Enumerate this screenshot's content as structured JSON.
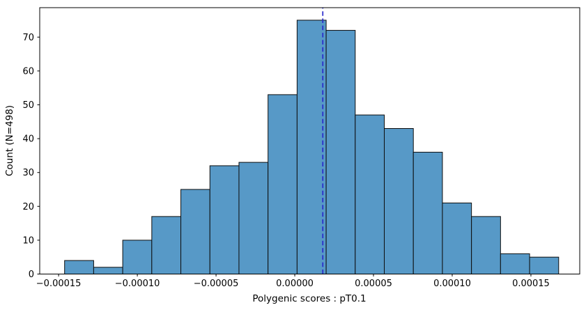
{
  "chart_data": {
    "type": "bar",
    "subtype": "histogram",
    "title": "",
    "xlabel": "Polygenic scores : pT0.1",
    "ylabel": "Count (N=498)",
    "sample_size": 498,
    "bin_edges": [
      -0.0001462,
      -0.00012774,
      -0.00010928,
      -9.082e-05,
      -7.236e-05,
      -5.39e-05,
      -3.544e-05,
      -1.698e-05,
      1.48e-06,
      1.994e-05,
      3.84e-05,
      5.686e-05,
      7.532e-05,
      9.378e-05,
      0.00011224,
      0.0001307,
      0.00014916,
      0.00016762
    ],
    "counts": [
      4,
      2,
      10,
      17,
      25,
      32,
      33,
      53,
      75,
      72,
      47,
      43,
      36,
      21,
      17,
      6,
      5
    ],
    "x_ticks": [
      {
        "value": -0.00015,
        "label": "−0.00015"
      },
      {
        "value": -0.0001,
        "label": "−0.00010"
      },
      {
        "value": -5e-05,
        "label": "−0.00005"
      },
      {
        "value": 0.0,
        "label": "0.00000"
      },
      {
        "value": 5e-05,
        "label": "0.00005"
      },
      {
        "value": 0.0001,
        "label": "0.00010"
      },
      {
        "value": 0.00015,
        "label": "0.00015"
      }
    ],
    "y_ticks": [
      0,
      10,
      20,
      30,
      40,
      50,
      60,
      70
    ],
    "xlim": [
      -0.000162,
      0.000181
    ],
    "ylim": [
      0,
      78.7
    ],
    "vline": {
      "value": 1.78e-05,
      "linestyle": "dashed"
    },
    "grid": false,
    "legend": null,
    "colors": {
      "bar_fill": "#5799c7",
      "bar_edge": "#0d0d0d",
      "vline": "#2929cc",
      "axis": "#000000",
      "background": "#ffffff"
    }
  }
}
